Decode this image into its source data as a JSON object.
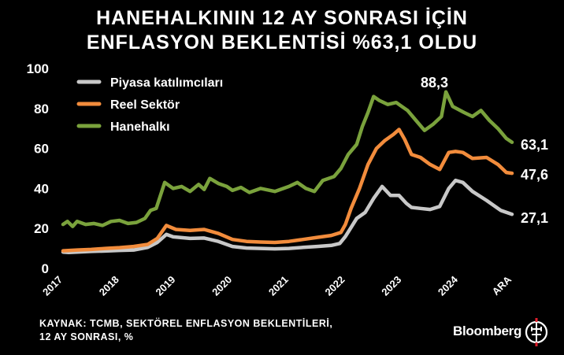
{
  "title_lines": [
    "HANEHALKININ 12 AY SONRASI İÇİN",
    "ENFLASYON BEKLENTİSİ %63,1 OLDU"
  ],
  "source_lines": [
    "KAYNAK: TCMB, SEKTÖREL ENFLASYON BEKLENTİLERİ,",
    "12 AY SONRASI, %"
  ],
  "brand": "Bloomberg",
  "brand_logo_icon": "ht-logo-icon",
  "chart_data": {
    "type": "line",
    "xlabels": [
      "2017",
      "2018",
      "2019",
      "2020",
      "2021",
      "2022",
      "2023",
      "2024",
      "ARA"
    ],
    "yticks": [
      0,
      20,
      40,
      60,
      80,
      100
    ],
    "ylim": [
      0,
      100
    ],
    "grid": false,
    "legend_position": "top-left",
    "annotations": [
      {
        "text": "88,3",
        "x": 2023.85,
        "y": 88.3
      },
      {
        "text": "63,1",
        "x": 2024.95,
        "y": 63.1
      },
      {
        "text": "47,6",
        "x": 2024.95,
        "y": 47.6
      },
      {
        "text": "27,1",
        "x": 2024.95,
        "y": 27.1
      }
    ],
    "series": [
      {
        "name": "Piyasa katılımcıları",
        "color": "#c8c8c8",
        "points": [
          [
            2017.0,
            8.2
          ],
          [
            2017.1,
            8.0
          ],
          [
            2017.25,
            8.2
          ],
          [
            2017.5,
            8.5
          ],
          [
            2017.75,
            8.7
          ],
          [
            2018.0,
            9.0
          ],
          [
            2018.25,
            9.2
          ],
          [
            2018.5,
            10.5
          ],
          [
            2018.67,
            13.0
          ],
          [
            2018.83,
            17.0
          ],
          [
            2018.95,
            15.8
          ],
          [
            2019.25,
            15.0
          ],
          [
            2019.5,
            15.2
          ],
          [
            2019.75,
            13.5
          ],
          [
            2020.0,
            11.0
          ],
          [
            2020.25,
            10.2
          ],
          [
            2020.5,
            10.0
          ],
          [
            2020.75,
            9.8
          ],
          [
            2021.0,
            10.0
          ],
          [
            2021.25,
            10.5
          ],
          [
            2021.5,
            11.0
          ],
          [
            2021.75,
            11.5
          ],
          [
            2021.9,
            12.5
          ],
          [
            2022.0,
            16.0
          ],
          [
            2022.1,
            20.5
          ],
          [
            2022.2,
            25.0
          ],
          [
            2022.35,
            28.0
          ],
          [
            2022.5,
            35.0
          ],
          [
            2022.65,
            41.0
          ],
          [
            2022.8,
            36.5
          ],
          [
            2022.95,
            36.5
          ],
          [
            2023.08,
            32.5
          ],
          [
            2023.17,
            30.5
          ],
          [
            2023.33,
            30.0
          ],
          [
            2023.5,
            29.5
          ],
          [
            2023.67,
            31.0
          ],
          [
            2023.83,
            40.0
          ],
          [
            2023.95,
            44.0
          ],
          [
            2024.08,
            43.0
          ],
          [
            2024.25,
            38.5
          ],
          [
            2024.5,
            34.0
          ],
          [
            2024.75,
            29.0
          ],
          [
            2024.95,
            27.1
          ]
        ]
      },
      {
        "name": "Reel Sektör",
        "color": "#f28c3c",
        "points": [
          [
            2017.0,
            8.8
          ],
          [
            2017.25,
            9.2
          ],
          [
            2017.5,
            9.5
          ],
          [
            2017.75,
            10.0
          ],
          [
            2018.0,
            10.4
          ],
          [
            2018.25,
            11.0
          ],
          [
            2018.5,
            12.0
          ],
          [
            2018.67,
            15.0
          ],
          [
            2018.83,
            21.5
          ],
          [
            2019.0,
            19.5
          ],
          [
            2019.25,
            19.0
          ],
          [
            2019.5,
            19.5
          ],
          [
            2019.75,
            17.5
          ],
          [
            2020.0,
            14.5
          ],
          [
            2020.25,
            13.5
          ],
          [
            2020.5,
            13.2
          ],
          [
            2020.75,
            13.0
          ],
          [
            2021.0,
            13.5
          ],
          [
            2021.25,
            14.5
          ],
          [
            2021.5,
            15.5
          ],
          [
            2021.75,
            16.5
          ],
          [
            2021.92,
            18.0
          ],
          [
            2022.0,
            22.0
          ],
          [
            2022.1,
            30.0
          ],
          [
            2022.25,
            40.0
          ],
          [
            2022.4,
            52.0
          ],
          [
            2022.55,
            60.0
          ],
          [
            2022.7,
            64.0
          ],
          [
            2022.85,
            67.0
          ],
          [
            2022.95,
            69.5
          ],
          [
            2023.05,
            64.5
          ],
          [
            2023.17,
            57.0
          ],
          [
            2023.33,
            55.5
          ],
          [
            2023.5,
            52.0
          ],
          [
            2023.67,
            49.5
          ],
          [
            2023.83,
            58.0
          ],
          [
            2023.95,
            58.5
          ],
          [
            2024.08,
            58.0
          ],
          [
            2024.25,
            55.0
          ],
          [
            2024.5,
            55.5
          ],
          [
            2024.7,
            52.0
          ],
          [
            2024.85,
            48.0
          ],
          [
            2024.95,
            47.6
          ]
        ]
      },
      {
        "name": "Hanehalkı",
        "color": "#7aa23c",
        "points": [
          [
            2017.0,
            22.0
          ],
          [
            2017.08,
            23.5
          ],
          [
            2017.17,
            21.0
          ],
          [
            2017.25,
            23.5
          ],
          [
            2017.4,
            22.0
          ],
          [
            2017.55,
            22.5
          ],
          [
            2017.7,
            21.5
          ],
          [
            2017.85,
            23.5
          ],
          [
            2018.0,
            24.0
          ],
          [
            2018.15,
            22.5
          ],
          [
            2018.3,
            23.0
          ],
          [
            2018.45,
            25.0
          ],
          [
            2018.55,
            29.0
          ],
          [
            2018.65,
            30.0
          ],
          [
            2018.8,
            43.0
          ],
          [
            2018.95,
            40.0
          ],
          [
            2019.1,
            41.0
          ],
          [
            2019.25,
            38.5
          ],
          [
            2019.4,
            42.0
          ],
          [
            2019.5,
            39.5
          ],
          [
            2019.6,
            45.0
          ],
          [
            2019.75,
            42.5
          ],
          [
            2019.9,
            41.0
          ],
          [
            2020.0,
            39.0
          ],
          [
            2020.15,
            40.5
          ],
          [
            2020.3,
            38.0
          ],
          [
            2020.5,
            40.0
          ],
          [
            2020.75,
            38.5
          ],
          [
            2021.0,
            41.0
          ],
          [
            2021.15,
            43.0
          ],
          [
            2021.3,
            40.0
          ],
          [
            2021.45,
            38.5
          ],
          [
            2021.6,
            44.0
          ],
          [
            2021.8,
            46.0
          ],
          [
            2021.92,
            50.0
          ],
          [
            2022.05,
            57.0
          ],
          [
            2022.2,
            62.0
          ],
          [
            2022.3,
            71.0
          ],
          [
            2022.4,
            78.0
          ],
          [
            2022.5,
            86.0
          ],
          [
            2022.6,
            84.0
          ],
          [
            2022.75,
            82.0
          ],
          [
            2022.9,
            83.0
          ],
          [
            2023.0,
            81.0
          ],
          [
            2023.1,
            79.0
          ],
          [
            2023.25,
            74.0
          ],
          [
            2023.4,
            69.0
          ],
          [
            2023.55,
            72.0
          ],
          [
            2023.7,
            76.0
          ],
          [
            2023.78,
            88.3
          ],
          [
            2023.9,
            81.0
          ],
          [
            2024.1,
            78.0
          ],
          [
            2024.25,
            76.0
          ],
          [
            2024.4,
            79.0
          ],
          [
            2024.55,
            74.0
          ],
          [
            2024.7,
            70.0
          ],
          [
            2024.85,
            65.0
          ],
          [
            2024.95,
            63.1
          ]
        ]
      }
    ]
  }
}
